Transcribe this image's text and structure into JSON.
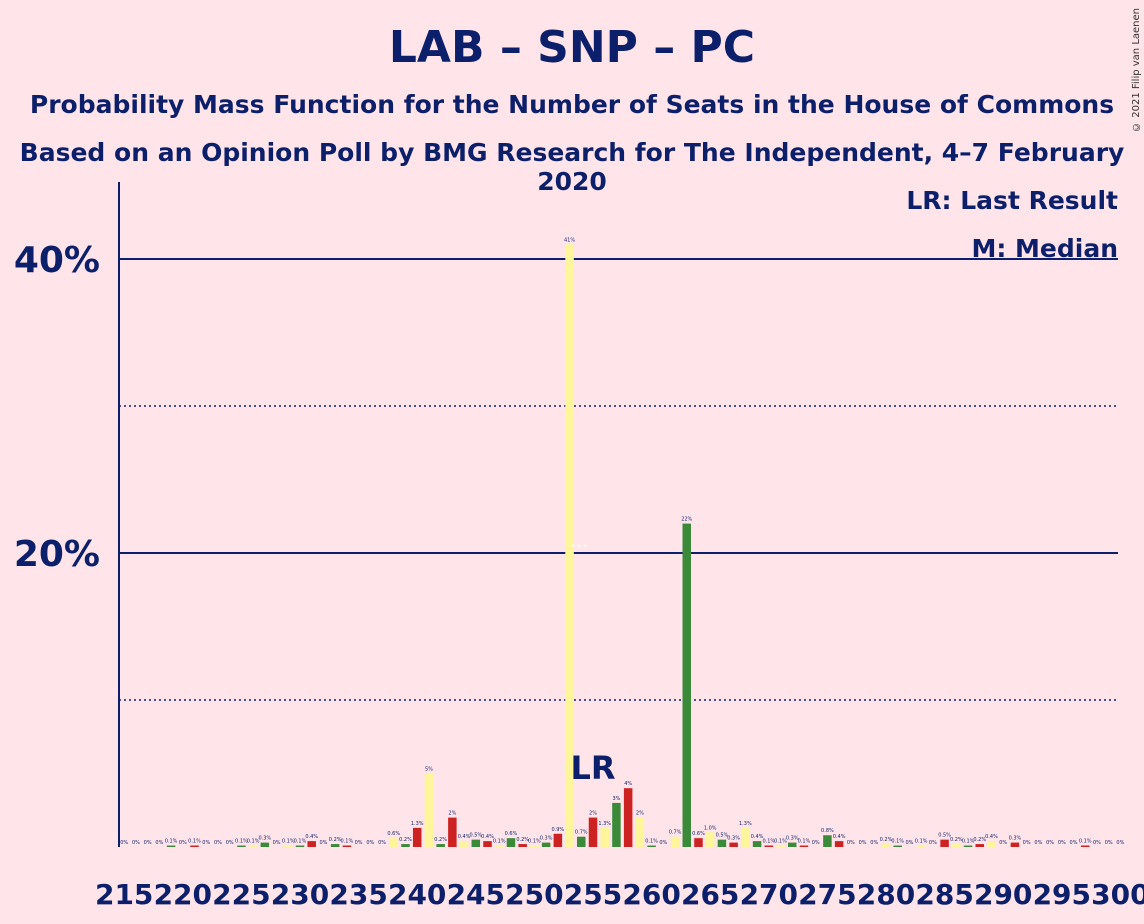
{
  "title": "LAB – SNP – PC",
  "subtitle1": "Probability Mass Function for the Number of Seats in the House of Commons",
  "subtitle2": "Based on an Opinion Poll by BMG Research for The Independent, 4–7 February 2020",
  "copyright": "© 2021 Filip van Laenen",
  "legend": {
    "lr": "LR: Last Result",
    "median": "M: Median"
  },
  "colors": {
    "background": "#ffe4e9",
    "text": "#0c1f6b",
    "red": "#cc2222",
    "green": "#3a8a3a",
    "yellow": "#fff59a"
  },
  "chart_data": {
    "type": "bar",
    "x": [
      215,
      216,
      217,
      218,
      219,
      220,
      221,
      222,
      223,
      224,
      225,
      226,
      227,
      228,
      229,
      230,
      231,
      232,
      233,
      234,
      235,
      236,
      237,
      238,
      239,
      240,
      241,
      242,
      243,
      244,
      245,
      246,
      247,
      248,
      249,
      250,
      251,
      252,
      253,
      254,
      255,
      256,
      257,
      258,
      259,
      260,
      261,
      262,
      263,
      264,
      265,
      266,
      267,
      268,
      269,
      270,
      271,
      272,
      273,
      274,
      275,
      276,
      277,
      278,
      279,
      280,
      281,
      282,
      283,
      284,
      285,
      286,
      287,
      288,
      289,
      290,
      291,
      292,
      293,
      294,
      295,
      296,
      297,
      298,
      299,
      300
    ],
    "values": [
      0,
      0,
      0,
      0,
      0.1,
      0,
      0.1,
      0,
      0,
      0,
      0.1,
      0.1,
      0.3,
      0,
      0.1,
      0.1,
      0.4,
      0,
      0.2,
      0.1,
      0,
      0,
      0,
      0.6,
      0.2,
      1.3,
      5,
      0.2,
      2,
      0.4,
      0.5,
      0.4,
      0.1,
      0.6,
      0.2,
      0.1,
      0.3,
      0.9,
      41,
      0.7,
      2,
      1.3,
      3,
      4,
      2,
      0.1,
      0,
      0.7,
      22,
      0.6,
      1.0,
      0.5,
      0.3,
      1.3,
      0.4,
      0.1,
      0.1,
      0.3,
      0.1,
      0,
      0.8,
      0.4,
      0,
      0,
      0,
      0.2,
      0.1,
      0,
      0.1,
      0,
      0.5,
      0.2,
      0.1,
      0.2,
      0.4,
      0,
      0.3,
      0,
      0,
      0,
      0,
      0,
      0.1,
      0,
      0,
      0
    ],
    "labels": [
      "0%",
      "0%",
      "0%",
      "0%",
      "0.1%",
      "0%",
      "0.1%",
      "0%",
      "0%",
      "0%",
      "0.1%",
      "0.1%",
      "0.3%",
      "0%",
      "0.1%",
      "0.1%",
      "0.4%",
      "0%",
      "0.2%",
      "0.1%",
      "0%",
      "0%",
      "0%",
      "0.6%",
      "0.2%",
      "1.3%",
      "5%",
      "0.2%",
      "2%",
      "0.4%",
      "0.5%",
      "0.4%",
      "0.1%",
      "0.6%",
      "0.2%",
      "0.1%",
      "0.3%",
      "0.9%",
      "41%",
      "0.7%",
      "2%",
      "1.3%",
      "3%",
      "4%",
      "2%",
      "0.1%",
      "0%",
      "0.7%",
      "22%",
      "0.6%",
      "1.0%",
      "0.5%",
      "0.3%",
      "1.3%",
      "0.4%",
      "0.1%",
      "0.1%",
      "0.3%",
      "0.1%",
      "0%",
      "0.8%",
      "0.4%",
      "0%",
      "0%",
      "0%",
      "0.2%",
      "0.1%",
      "0%",
      "0.1%",
      "0%",
      "0.5%",
      "0.2%",
      "0.1%",
      "0.2%",
      "0.4%",
      "0%",
      "0.3%",
      "0%",
      "0%",
      "0%",
      "0%",
      "0%",
      "0.1%",
      "0%",
      "0%",
      "0%"
    ],
    "colors": [
      "r",
      "g",
      "y",
      "r",
      "g",
      "y",
      "r",
      "g",
      "y",
      "r",
      "g",
      "y",
      "g",
      "r",
      "y",
      "g",
      "r",
      "y",
      "g",
      "r",
      "y",
      "g",
      "r",
      "y",
      "g",
      "r",
      "y",
      "g",
      "r",
      "y",
      "g",
      "r",
      "y",
      "g",
      "r",
      "y",
      "g",
      "r",
      "y",
      "g",
      "r",
      "y",
      "g",
      "r",
      "y",
      "g",
      "r",
      "y",
      "g",
      "r",
      "y",
      "g",
      "r",
      "y",
      "g",
      "r",
      "y",
      "g",
      "r",
      "y",
      "g",
      "r",
      "y",
      "g",
      "r",
      "y",
      "g",
      "r",
      "y",
      "g",
      "r",
      "y",
      "g",
      "r",
      "y",
      "g",
      "r",
      "y",
      "g",
      "r",
      "y",
      "g",
      "r",
      "y",
      "g",
      "r"
    ],
    "xticks": [
      215,
      220,
      225,
      230,
      235,
      240,
      245,
      250,
      255,
      260,
      265,
      270,
      275,
      280,
      285,
      290,
      295,
      300
    ],
    "yticks": [
      {
        "value": 20,
        "label": "20%"
      },
      {
        "value": 40,
        "label": "40%"
      }
    ],
    "minor_gridlines": [
      10,
      30
    ],
    "ylim": [
      0,
      45
    ],
    "last_result": 255,
    "last_result_label": "LR",
    "median": 254,
    "median_label": "M"
  }
}
